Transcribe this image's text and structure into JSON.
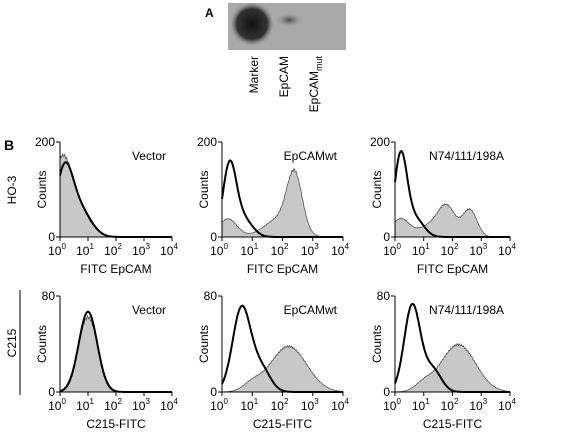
{
  "panel_a": {
    "label": "A",
    "lanes": [
      {
        "text": "Marker"
      },
      {
        "text": "EpCAM"
      },
      {
        "text": "EpCAM",
        "sub": "mut"
      }
    ]
  },
  "panel_b": {
    "label": "B",
    "x_tick_labels": [
      {
        "base": "10",
        "exp": "0"
      },
      {
        "base": "10",
        "exp": "1"
      },
      {
        "base": "10",
        "exp": "2"
      },
      {
        "base": "10",
        "exp": "3"
      },
      {
        "base": "10",
        "exp": "4"
      }
    ],
    "rows": [
      {
        "label": "HO-3",
        "y_axis_label": "Counts",
        "y_tick_labels": [
          "0",
          "200"
        ],
        "x_axis_label": "FITC EpCAM",
        "panels": [
          "Vector",
          "EpCAMwt",
          "N74/111/198A"
        ]
      },
      {
        "label": "C215",
        "y_axis_label": "Counts",
        "y_tick_labels": [
          "0",
          "80"
        ],
        "x_axis_label": "C215-FITC",
        "panels": [
          "Vector",
          "EpCAMwt",
          "N74/111/198A"
        ]
      }
    ]
  }
}
